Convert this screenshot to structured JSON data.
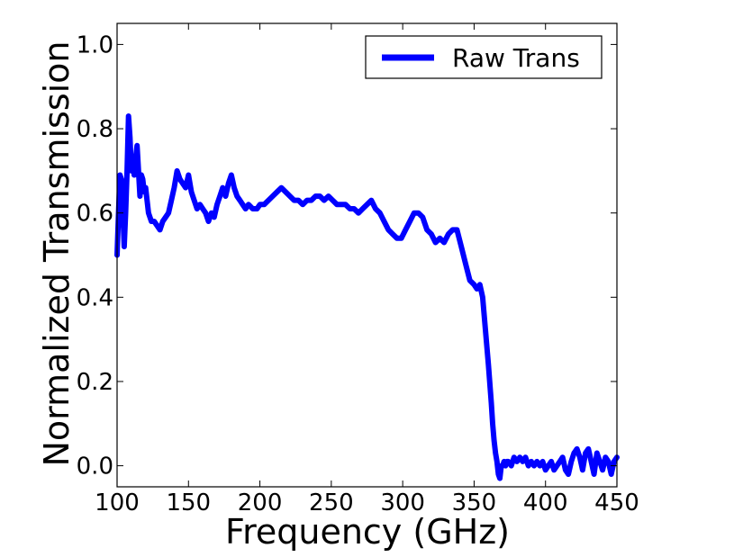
{
  "chart_data": {
    "type": "line",
    "title": "",
    "xlabel": "Frequency (GHz)",
    "ylabel": "Normalized Transmission",
    "xlim": [
      100,
      450
    ],
    "ylim": [
      -0.05,
      1.05
    ],
    "xticks": [
      100,
      150,
      200,
      250,
      300,
      350,
      400,
      450
    ],
    "yticks": [
      0.0,
      0.2,
      0.4,
      0.6,
      0.8,
      1.0
    ],
    "ytick_labels": [
      "0.0",
      "0.2",
      "0.4",
      "0.6",
      "0.8",
      "1.0"
    ],
    "grid": false,
    "legend_position": "top-right",
    "series": [
      {
        "name": "Raw Trans",
        "color": "#0000ff",
        "x": [
          100,
          101,
          102,
          103,
          104,
          105,
          106,
          107,
          108,
          109,
          110,
          111,
          112,
          113,
          114,
          115,
          116,
          117,
          118,
          119,
          120,
          121,
          122,
          124,
          126,
          128,
          130,
          132,
          134,
          136,
          138,
          140,
          142,
          144,
          146,
          148,
          150,
          152,
          154,
          156,
          158,
          160,
          162,
          164,
          166,
          168,
          170,
          172,
          174,
          176,
          178,
          180,
          182,
          184,
          186,
          188,
          190,
          192,
          195,
          198,
          200,
          203,
          206,
          209,
          212,
          215,
          218,
          221,
          224,
          227,
          230,
          233,
          236,
          239,
          242,
          245,
          248,
          251,
          254,
          257,
          260,
          263,
          266,
          269,
          272,
          275,
          278,
          281,
          284,
          287,
          290,
          293,
          296,
          299,
          302,
          305,
          308,
          311,
          314,
          317,
          320,
          323,
          326,
          329,
          332,
          335,
          338,
          341,
          344,
          347,
          350,
          352,
          354,
          356,
          358,
          360,
          362,
          363,
          364,
          365,
          366,
          367,
          368,
          369,
          370,
          371,
          372,
          373,
          374,
          376,
          378,
          380,
          382,
          384,
          386,
          388,
          390,
          392,
          394,
          396,
          398,
          400,
          402,
          404,
          406,
          408,
          410,
          412,
          414,
          416,
          418,
          420,
          422,
          424,
          426,
          428,
          430,
          432,
          434,
          436,
          438,
          440,
          442,
          444,
          446,
          448,
          450
        ],
        "y": [
          0.5,
          0.6,
          0.69,
          0.68,
          0.61,
          0.52,
          0.6,
          0.7,
          0.83,
          0.78,
          0.7,
          0.72,
          0.69,
          0.73,
          0.76,
          0.7,
          0.64,
          0.69,
          0.68,
          0.65,
          0.66,
          0.63,
          0.6,
          0.58,
          0.58,
          0.57,
          0.56,
          0.58,
          0.59,
          0.6,
          0.63,
          0.66,
          0.7,
          0.68,
          0.67,
          0.66,
          0.69,
          0.65,
          0.63,
          0.61,
          0.62,
          0.61,
          0.6,
          0.58,
          0.6,
          0.59,
          0.62,
          0.64,
          0.66,
          0.64,
          0.67,
          0.69,
          0.66,
          0.64,
          0.63,
          0.62,
          0.61,
          0.62,
          0.61,
          0.61,
          0.62,
          0.62,
          0.63,
          0.64,
          0.65,
          0.66,
          0.65,
          0.64,
          0.63,
          0.63,
          0.62,
          0.63,
          0.63,
          0.64,
          0.64,
          0.63,
          0.64,
          0.63,
          0.62,
          0.62,
          0.62,
          0.61,
          0.61,
          0.6,
          0.61,
          0.62,
          0.63,
          0.61,
          0.6,
          0.58,
          0.56,
          0.55,
          0.54,
          0.54,
          0.56,
          0.58,
          0.6,
          0.6,
          0.59,
          0.56,
          0.55,
          0.53,
          0.54,
          0.53,
          0.55,
          0.56,
          0.56,
          0.52,
          0.48,
          0.44,
          0.43,
          0.42,
          0.43,
          0.4,
          0.32,
          0.24,
          0.15,
          0.1,
          0.06,
          0.03,
          0.01,
          -0.02,
          -0.03,
          0.0,
          0.0,
          0.01,
          0.0,
          0.01,
          0.01,
          0.0,
          0.02,
          0.01,
          0.02,
          0.01,
          0.02,
          0.0,
          0.01,
          0.0,
          0.01,
          0.0,
          0.01,
          -0.01,
          0.0,
          0.01,
          -0.01,
          0.0,
          0.01,
          0.02,
          -0.01,
          -0.02,
          0.01,
          0.03,
          0.04,
          0.02,
          -0.01,
          0.03,
          0.04,
          0.01,
          -0.02,
          0.03,
          0.01,
          -0.01,
          0.02,
          0.01,
          -0.02,
          0.01,
          0.02
        ]
      }
    ]
  }
}
